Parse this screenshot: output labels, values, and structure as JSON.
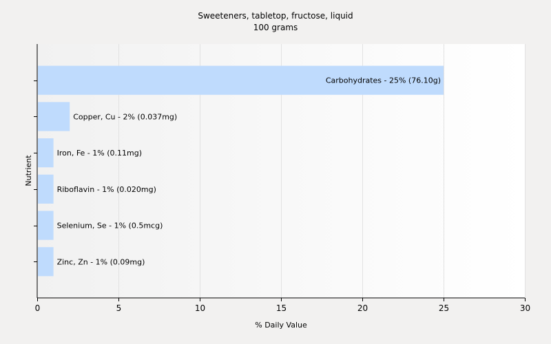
{
  "chart_data": {
    "type": "bar",
    "orientation": "horizontal",
    "title": "Sweeteners, tabletop, fructose, liquid",
    "subtitle": "100 grams",
    "xlabel": "% Daily Value",
    "ylabel": "Nutrient",
    "xlim": [
      0,
      30
    ],
    "xticks": [
      0,
      5,
      10,
      15,
      20,
      25,
      30
    ],
    "grid": true,
    "bar_color": "#bfdbfd",
    "categories": [
      "Carbohydrates",
      "Copper, Cu",
      "Iron, Fe",
      "Riboflavin",
      "Selenium, Se",
      "Zinc, Zn"
    ],
    "values": [
      25,
      2,
      1,
      1,
      1,
      1
    ],
    "data_labels": [
      "Carbohydrates - 25% (76.10g)",
      "Copper, Cu - 2% (0.037mg)",
      "Iron, Fe - 1% (0.11mg)",
      "Riboflavin - 1% (0.020mg)",
      "Selenium, Se - 1% (0.5mcg)",
      "Zinc, Zn - 1% (0.09mg)"
    ]
  }
}
